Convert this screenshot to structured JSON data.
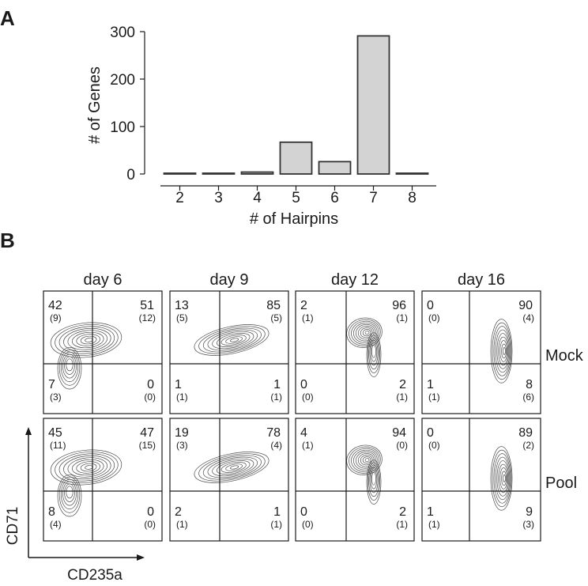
{
  "panel_a_label": "A",
  "panel_b_label": "B",
  "chart_data": [
    {
      "type": "bar",
      "categories": [
        "2",
        "3",
        "4",
        "5",
        "6",
        "7",
        "8"
      ],
      "values": [
        1,
        1,
        4,
        67,
        26,
        291,
        1
      ],
      "xlabel": "# of Hairpins",
      "ylabel": "# of Genes",
      "ylim": [
        0,
        300
      ],
      "yticks": [
        "0",
        "100",
        "200",
        "300"
      ],
      "bar_color": "#d3d3d3"
    },
    {
      "type": "contour-grid",
      "column_headers": [
        "day 6",
        "day 9",
        "day 12",
        "day 16"
      ],
      "row_labels": [
        "Mock",
        "Pool"
      ],
      "xlabel": "CD235a",
      "ylabel": "CD71",
      "panels": [
        [
          {
            "tl": "42",
            "tl_sd": "(9)",
            "tr": "51",
            "tr_sd": "(12)",
            "bl": "7",
            "bl_sd": "(3)",
            "br": "0",
            "br_sd": "(0)"
          },
          {
            "tl": "13",
            "tl_sd": "(5)",
            "tr": "85",
            "tr_sd": "(5)",
            "bl": "1",
            "bl_sd": "(1)",
            "br": "1",
            "br_sd": "(1)"
          },
          {
            "tl": "2",
            "tl_sd": "(1)",
            "tr": "96",
            "tr_sd": "(1)",
            "bl": "0",
            "bl_sd": "(0)",
            "br": "2",
            "br_sd": "(1)"
          },
          {
            "tl": "0",
            "tl_sd": "(0)",
            "tr": "90",
            "tr_sd": "(4)",
            "bl": "1",
            "bl_sd": "(1)",
            "br": "8",
            "br_sd": "(6)"
          }
        ],
        [
          {
            "tl": "45",
            "tl_sd": "(11)",
            "tr": "47",
            "tr_sd": "(15)",
            "bl": "8",
            "bl_sd": "(4)",
            "br": "0",
            "br_sd": "(0)"
          },
          {
            "tl": "19",
            "tl_sd": "(3)",
            "tr": "78",
            "tr_sd": "(4)",
            "bl": "2",
            "bl_sd": "(1)",
            "br": "1",
            "br_sd": "(1)"
          },
          {
            "tl": "4",
            "tl_sd": "(1)",
            "tr": "94",
            "tr_sd": "(0)",
            "bl": "0",
            "bl_sd": "(0)",
            "br": "2",
            "br_sd": "(1)"
          },
          {
            "tl": "0",
            "tl_sd": "(0)",
            "tr": "89",
            "tr_sd": "(2)",
            "bl": "1",
            "bl_sd": "(1)",
            "br": "9",
            "br_sd": "(3)"
          }
        ]
      ]
    }
  ]
}
